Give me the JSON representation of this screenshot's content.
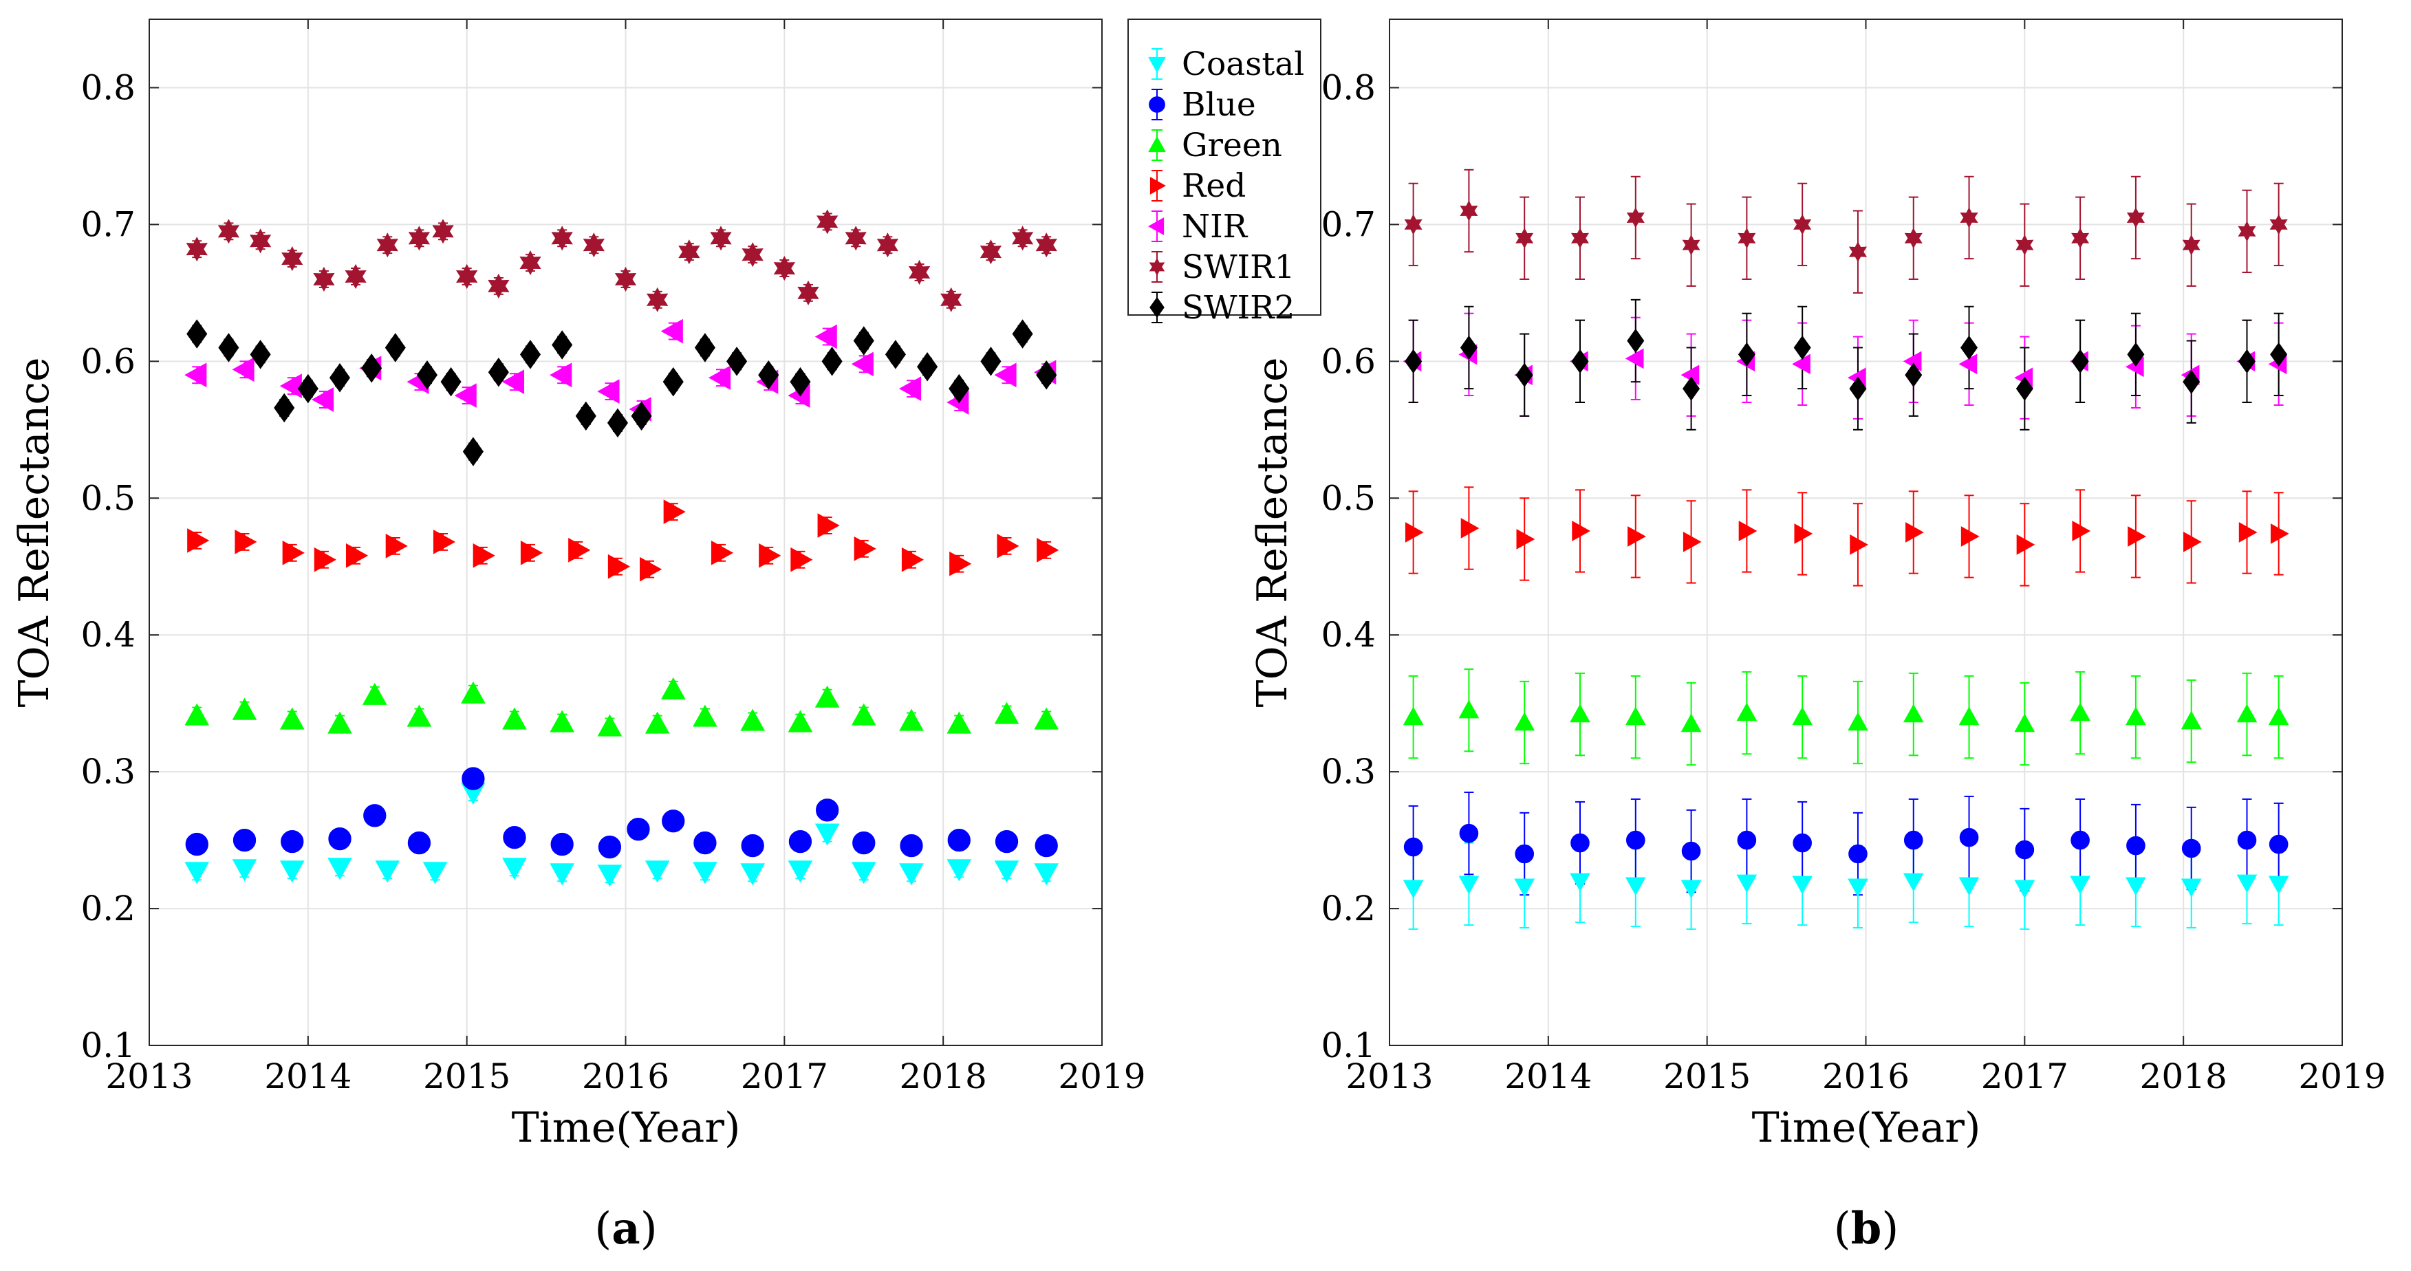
{
  "figure": {
    "panel_captions": [
      {
        "open": "(",
        "letter": "a",
        "close": ")"
      },
      {
        "open": "(",
        "letter": "b",
        "close": ")"
      }
    ]
  },
  "legend": {
    "entries": [
      {
        "label": "Coastal",
        "color": "#00ffff",
        "marker": "triangle-down"
      },
      {
        "label": "Blue",
        "color": "#0000ff",
        "marker": "circle"
      },
      {
        "label": "Green",
        "color": "#00ff00",
        "marker": "triangle-up"
      },
      {
        "label": "Red",
        "color": "#ff0000",
        "marker": "triangle-right"
      },
      {
        "label": "NIR",
        "color": "#ff00ff",
        "marker": "triangle-left"
      },
      {
        "label": "SWIR1",
        "color": "#a2142f",
        "marker": "hexagram"
      },
      {
        "label": "SWIR2",
        "color": "#000000",
        "marker": "diamond"
      }
    ]
  },
  "chart_data": [
    {
      "type": "scatter",
      "panel": "a",
      "title": "",
      "xlabel": "Time(Year)",
      "ylabel": "TOA Reflectance",
      "xlim": [
        2013,
        2019
      ],
      "ylim": [
        0.1,
        0.85
      ],
      "xticks": [
        "2013",
        "2014",
        "2015",
        "2016",
        "2017",
        "2018",
        "2019"
      ],
      "yticks": [
        "0.1",
        "0.2",
        "0.3",
        "0.4",
        "0.5",
        "0.6",
        "0.7",
        "0.8"
      ],
      "grid": true,
      "error_bars": true,
      "series": [
        {
          "name": "Coastal",
          "x": [
            2013.3,
            2013.6,
            2013.9,
            2014.2,
            2014.5,
            2014.8,
            2015.04,
            2015.3,
            2015.6,
            2015.9,
            2016.2,
            2016.5,
            2016.8,
            2017.1,
            2017.27,
            2017.5,
            2017.8,
            2018.1,
            2018.4,
            2018.65
          ],
          "y": [
            0.227,
            0.229,
            0.228,
            0.23,
            0.228,
            0.227,
            0.285,
            0.23,
            0.226,
            0.225,
            0.228,
            0.227,
            0.226,
            0.228,
            0.255,
            0.227,
            0.226,
            0.229,
            0.228,
            0.226
          ]
        },
        {
          "name": "Blue",
          "x": [
            2013.3,
            2013.6,
            2013.9,
            2014.2,
            2014.42,
            2014.7,
            2015.04,
            2015.3,
            2015.6,
            2015.9,
            2016.08,
            2016.3,
            2016.5,
            2016.8,
            2017.1,
            2017.27,
            2017.5,
            2017.8,
            2018.1,
            2018.4,
            2018.65
          ],
          "y": [
            0.247,
            0.25,
            0.249,
            0.251,
            0.268,
            0.248,
            0.295,
            0.252,
            0.247,
            0.245,
            0.258,
            0.264,
            0.248,
            0.246,
            0.249,
            0.272,
            0.248,
            0.246,
            0.25,
            0.249,
            0.246
          ]
        },
        {
          "name": "Green",
          "x": [
            2013.3,
            2013.6,
            2013.9,
            2014.2,
            2014.42,
            2014.7,
            2015.04,
            2015.3,
            2015.6,
            2015.9,
            2016.2,
            2016.3,
            2016.5,
            2016.8,
            2017.1,
            2017.27,
            2017.5,
            2017.8,
            2018.1,
            2018.4,
            2018.65
          ],
          "y": [
            0.341,
            0.345,
            0.338,
            0.335,
            0.356,
            0.34,
            0.357,
            0.338,
            0.336,
            0.333,
            0.335,
            0.36,
            0.34,
            0.337,
            0.336,
            0.354,
            0.341,
            0.337,
            0.335,
            0.342,
            0.338
          ]
        },
        {
          "name": "Red",
          "x": [
            2013.3,
            2013.6,
            2013.9,
            2014.1,
            2014.3,
            2014.55,
            2014.85,
            2015.1,
            2015.4,
            2015.7,
            2015.95,
            2016.15,
            2016.3,
            2016.6,
            2016.9,
            2017.1,
            2017.27,
            2017.5,
            2017.8,
            2018.1,
            2018.4,
            2018.65
          ],
          "y": [
            0.469,
            0.468,
            0.46,
            0.455,
            0.458,
            0.465,
            0.468,
            0.458,
            0.46,
            0.462,
            0.45,
            0.448,
            0.49,
            0.46,
            0.458,
            0.455,
            0.48,
            0.463,
            0.455,
            0.452,
            0.465,
            0.462
          ]
        },
        {
          "name": "NIR",
          "x": [
            2013.3,
            2013.6,
            2013.9,
            2014.1,
            2014.4,
            2014.7,
            2015.0,
            2015.3,
            2015.6,
            2015.9,
            2016.1,
            2016.3,
            2016.6,
            2016.9,
            2017.1,
            2017.27,
            2017.5,
            2017.8,
            2018.1,
            2018.4,
            2018.65
          ],
          "y": [
            0.59,
            0.594,
            0.582,
            0.572,
            0.595,
            0.585,
            0.575,
            0.585,
            0.59,
            0.578,
            0.565,
            0.622,
            0.588,
            0.585,
            0.575,
            0.618,
            0.598,
            0.58,
            0.57,
            0.59,
            0.592
          ]
        },
        {
          "name": "SWIR1",
          "x": [
            2013.3,
            2013.5,
            2013.7,
            2013.9,
            2014.1,
            2014.3,
            2014.5,
            2014.7,
            2014.85,
            2015.0,
            2015.2,
            2015.4,
            2015.6,
            2015.8,
            2016.0,
            2016.2,
            2016.4,
            2016.6,
            2016.8,
            2017.0,
            2017.15,
            2017.27,
            2017.45,
            2017.65,
            2017.85,
            2018.05,
            2018.3,
            2018.5,
            2018.65
          ],
          "y": [
            0.682,
            0.695,
            0.688,
            0.675,
            0.66,
            0.662,
            0.685,
            0.69,
            0.695,
            0.662,
            0.655,
            0.672,
            0.69,
            0.685,
            0.66,
            0.645,
            0.68,
            0.69,
            0.678,
            0.668,
            0.65,
            0.702,
            0.69,
            0.685,
            0.665,
            0.645,
            0.68,
            0.69,
            0.685
          ]
        },
        {
          "name": "SWIR2",
          "x": [
            2013.3,
            2013.5,
            2013.7,
            2013.85,
            2014.0,
            2014.2,
            2014.4,
            2014.55,
            2014.75,
            2014.9,
            2015.04,
            2015.2,
            2015.4,
            2015.6,
            2015.75,
            2015.95,
            2016.1,
            2016.3,
            2016.5,
            2016.7,
            2016.9,
            2017.1,
            2017.3,
            2017.5,
            2017.7,
            2017.9,
            2018.1,
            2018.3,
            2018.5,
            2018.65
          ],
          "y": [
            0.62,
            0.61,
            0.605,
            0.566,
            0.58,
            0.588,
            0.595,
            0.61,
            0.59,
            0.585,
            0.534,
            0.592,
            0.605,
            0.612,
            0.56,
            0.555,
            0.56,
            0.585,
            0.61,
            0.6,
            0.59,
            0.585,
            0.6,
            0.615,
            0.605,
            0.596,
            0.58,
            0.6,
            0.62,
            0.59
          ]
        }
      ]
    },
    {
      "type": "scatter",
      "panel": "b",
      "title": "",
      "xlabel": "Time(Year)",
      "ylabel": "TOA Reflectance",
      "xlim": [
        2013,
        2019
      ],
      "ylim": [
        0.1,
        0.85
      ],
      "xticks": [
        "2013",
        "2014",
        "2015",
        "2016",
        "2017",
        "2018",
        "2019"
      ],
      "yticks": [
        "0.1",
        "0.2",
        "0.3",
        "0.4",
        "0.5",
        "0.6",
        "0.7",
        "0.8"
      ],
      "grid": true,
      "error_bars": true,
      "series": [
        {
          "name": "Coastal",
          "x": [
            2013.15,
            2013.5,
            2013.85,
            2014.2,
            2014.55,
            2014.9,
            2015.25,
            2015.6,
            2015.95,
            2016.3,
            2016.65,
            2017.0,
            2017.35,
            2017.7,
            2018.05,
            2018.4,
            2018.6
          ],
          "y": [
            0.215,
            0.218,
            0.216,
            0.22,
            0.217,
            0.215,
            0.219,
            0.218,
            0.216,
            0.22,
            0.217,
            0.215,
            0.218,
            0.217,
            0.216,
            0.219,
            0.218
          ]
        },
        {
          "name": "Blue",
          "x": [
            2013.15,
            2013.5,
            2013.85,
            2014.2,
            2014.55,
            2014.9,
            2015.25,
            2015.6,
            2015.95,
            2016.3,
            2016.65,
            2017.0,
            2017.35,
            2017.7,
            2018.05,
            2018.4,
            2018.6
          ],
          "y": [
            0.245,
            0.255,
            0.24,
            0.248,
            0.25,
            0.242,
            0.25,
            0.248,
            0.24,
            0.25,
            0.252,
            0.243,
            0.25,
            0.246,
            0.244,
            0.25,
            0.247
          ]
        },
        {
          "name": "Green",
          "x": [
            2013.15,
            2013.5,
            2013.85,
            2014.2,
            2014.55,
            2014.9,
            2015.25,
            2015.6,
            2015.95,
            2016.3,
            2016.65,
            2017.0,
            2017.35,
            2017.7,
            2018.05,
            2018.4,
            2018.6
          ],
          "y": [
            0.34,
            0.345,
            0.336,
            0.342,
            0.34,
            0.335,
            0.343,
            0.34,
            0.336,
            0.342,
            0.34,
            0.335,
            0.343,
            0.34,
            0.337,
            0.342,
            0.34
          ]
        },
        {
          "name": "Red",
          "x": [
            2013.15,
            2013.5,
            2013.85,
            2014.2,
            2014.55,
            2014.9,
            2015.25,
            2015.6,
            2015.95,
            2016.3,
            2016.65,
            2017.0,
            2017.35,
            2017.7,
            2018.05,
            2018.4,
            2018.6
          ],
          "y": [
            0.475,
            0.478,
            0.47,
            0.476,
            0.472,
            0.468,
            0.476,
            0.474,
            0.466,
            0.475,
            0.472,
            0.466,
            0.476,
            0.472,
            0.468,
            0.475,
            0.474
          ]
        },
        {
          "name": "NIR",
          "x": [
            2013.15,
            2013.5,
            2013.85,
            2014.2,
            2014.55,
            2014.9,
            2015.25,
            2015.6,
            2015.95,
            2016.3,
            2016.65,
            2017.0,
            2017.35,
            2017.7,
            2018.05,
            2018.4,
            2018.6
          ],
          "y": [
            0.6,
            0.605,
            0.59,
            0.6,
            0.602,
            0.59,
            0.6,
            0.598,
            0.588,
            0.6,
            0.598,
            0.588,
            0.6,
            0.596,
            0.59,
            0.6,
            0.598
          ]
        },
        {
          "name": "SWIR1",
          "x": [
            2013.15,
            2013.5,
            2013.85,
            2014.2,
            2014.55,
            2014.9,
            2015.25,
            2015.6,
            2015.95,
            2016.3,
            2016.65,
            2017.0,
            2017.35,
            2017.7,
            2018.05,
            2018.4,
            2018.6
          ],
          "y": [
            0.7,
            0.71,
            0.69,
            0.69,
            0.705,
            0.685,
            0.69,
            0.7,
            0.68,
            0.69,
            0.705,
            0.685,
            0.69,
            0.705,
            0.685,
            0.695,
            0.7
          ]
        },
        {
          "name": "SWIR2",
          "x": [
            2013.15,
            2013.5,
            2013.85,
            2014.2,
            2014.55,
            2014.9,
            2015.25,
            2015.6,
            2015.95,
            2016.3,
            2016.65,
            2017.0,
            2017.35,
            2017.7,
            2018.05,
            2018.4,
            2018.6
          ],
          "y": [
            0.6,
            0.61,
            0.59,
            0.6,
            0.615,
            0.58,
            0.605,
            0.61,
            0.58,
            0.59,
            0.61,
            0.58,
            0.6,
            0.605,
            0.585,
            0.6,
            0.605
          ]
        }
      ]
    }
  ]
}
